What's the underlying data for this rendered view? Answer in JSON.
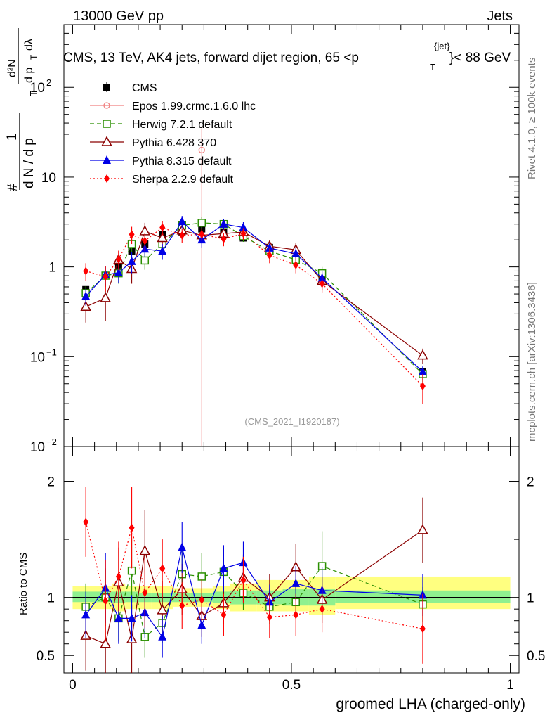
{
  "header": {
    "left": "13000 GeV pp",
    "right": "Jets",
    "side_top": "Rivet 4.1.0, ≥ 100k events",
    "side_bottom": "mcplots.cern.ch [arXiv:1306.3436]"
  },
  "chart_data": {
    "type": "line",
    "title": "CMS, 13 TeV, AK4 jets, forward dijet region, 65 <p",
    "title_sup": "{jet}",
    "title_sub": "T",
    "title_tail": "}< 88 GeV",
    "watermark": "(CMS_2021_I1920187)",
    "xlabel": "groomed LHA (charged-only)",
    "ylabel": "1/dN/dp_T d^2N/dp_T dλ",
    "ylabel_parts": {
      "n1": "1",
      "dn": "d N / d p",
      "t1": "T",
      "hash": "#",
      "d2n": "d²N",
      "dpt": "d p",
      "t2": "T",
      "dl": "dλ"
    },
    "ratio_ylabel": "Ratio to CMS",
    "xlim": [
      -0.02,
      1.02
    ],
    "ylim": [
      0.01,
      500
    ],
    "ratio_ylim": [
      0.35,
      2.3
    ],
    "x_ticks": [
      {
        "v": 0,
        "label": "0"
      },
      {
        "v": 0.5,
        "label": "0.5"
      },
      {
        "v": 1,
        "label": "1"
      }
    ],
    "y_ticks": [
      {
        "v": 0.01,
        "base": "10",
        "exp": "−2"
      },
      {
        "v": 0.1,
        "base": "10",
        "exp": "−1"
      },
      {
        "v": 1,
        "base": "1",
        "exp": ""
      },
      {
        "v": 10,
        "base": "10",
        "exp": ""
      },
      {
        "v": 100,
        "base": "10",
        "exp": "2"
      }
    ],
    "ratio_ticks": [
      {
        "v": 0.5,
        "label": "0.5"
      },
      {
        "v": 1,
        "label": "1"
      },
      {
        "v": 2,
        "label": "2"
      }
    ],
    "x": [
      0.03,
      0.075,
      0.105,
      0.135,
      0.165,
      0.205,
      0.25,
      0.295,
      0.345,
      0.39,
      0.45,
      0.51,
      0.57,
      0.8
    ],
    "series": [
      {
        "name": "CMS",
        "color": "#000000",
        "marker": "square-filled",
        "line": "none",
        "values": [
          0.56,
          0.8,
          1.05,
          1.5,
          1.8,
          2.3,
          2.45,
          2.65,
          2.45,
          2.1,
          1.65,
          1.25,
          0.72,
          0.068
        ],
        "err": [
          0.05,
          0.08,
          0.1,
          0.15,
          0.16,
          0.2,
          0.2,
          0.22,
          0.2,
          0.18,
          0.15,
          0.11,
          0.07,
          0.007
        ]
      },
      {
        "name": "Epos 1.99.crmc.1.6.0 lhc",
        "color": "#f08080",
        "marker": "circle-open",
        "line": "solid",
        "values": [
          null,
          null,
          null,
          null,
          null,
          null,
          null,
          20,
          null,
          null,
          null,
          null,
          null,
          null
        ],
        "err": [
          null,
          null,
          null,
          null,
          null,
          null,
          null,
          15,
          null,
          null,
          null,
          null,
          null,
          null
        ],
        "xerr": [
          null,
          null,
          null,
          null,
          null,
          null,
          null,
          0.02,
          null,
          null,
          null,
          null,
          null,
          null
        ],
        "ratio": [
          null,
          null,
          null,
          null,
          null,
          null,
          null,
          null,
          null,
          null,
          null,
          null,
          null,
          null
        ]
      },
      {
        "name": "Herwig 7.2.1 default",
        "color": "#2a8f00",
        "marker": "square-open",
        "line": "dashed",
        "values": [
          0.51,
          0.8,
          0.85,
          1.8,
          1.18,
          1.8,
          2.9,
          3.1,
          3.0,
          2.2,
          1.5,
          1.2,
          0.85,
          0.064
        ],
        "err": [
          0.1,
          0.2,
          0.2,
          0.45,
          0.25,
          0.35,
          0.5,
          0.5,
          0.4,
          0.3,
          0.25,
          0.2,
          0.15,
          0.012
        ],
        "ratio": [
          0.92,
          1.0,
          0.82,
          1.23,
          0.66,
          0.78,
          1.2,
          1.18,
          1.22,
          1.04,
          0.92,
          0.96,
          1.27,
          0.94
        ],
        "ratio_err": [
          0.2,
          0.25,
          0.2,
          0.28,
          0.18,
          0.17,
          0.2,
          0.2,
          0.2,
          0.15,
          0.15,
          0.15,
          0.3,
          0.15
        ]
      },
      {
        "name": "Pythia 6.428 370",
        "color": "#8b0000",
        "marker": "triangle-open",
        "line": "solid",
        "values": [
          0.36,
          0.45,
          1.2,
          0.95,
          2.5,
          2.1,
          2.55,
          2.25,
          2.35,
          2.45,
          1.7,
          1.55,
          0.7,
          0.103
        ],
        "err": [
          0.12,
          0.2,
          0.3,
          0.3,
          0.6,
          0.5,
          0.5,
          0.4,
          0.4,
          0.4,
          0.3,
          0.3,
          0.15,
          0.02
        ],
        "ratio": [
          0.67,
          0.6,
          1.13,
          0.64,
          1.4,
          0.89,
          1.07,
          0.84,
          0.95,
          1.17,
          1.0,
          1.26,
          0.98,
          1.58
        ],
        "ratio_err": [
          0.3,
          0.35,
          0.3,
          0.3,
          0.35,
          0.25,
          0.22,
          0.18,
          0.18,
          0.2,
          0.2,
          0.2,
          0.2,
          0.28
        ]
      },
      {
        "name": "Pythia 8.315 default",
        "color": "#0000e6",
        "marker": "triangle-filled",
        "line": "solid",
        "values": [
          0.47,
          0.82,
          0.86,
          1.15,
          1.58,
          1.5,
          3.2,
          2.0,
          3.0,
          2.75,
          1.62,
          1.4,
          0.75,
          0.068
        ],
        "err": [
          0.1,
          0.2,
          0.2,
          0.3,
          0.3,
          0.3,
          0.5,
          0.35,
          0.4,
          0.4,
          0.25,
          0.25,
          0.15,
          0.01
        ],
        "ratio": [
          0.85,
          1.08,
          0.82,
          0.82,
          0.87,
          0.66,
          1.43,
          0.76,
          1.25,
          1.3,
          0.96,
          1.12,
          1.06,
          1.02
        ],
        "ratio_err": [
          0.2,
          0.3,
          0.22,
          0.2,
          0.22,
          0.18,
          0.22,
          0.16,
          0.2,
          0.18,
          0.15,
          0.15,
          0.2,
          0.18
        ]
      },
      {
        "name": "Sherpa 2.2.9 default",
        "color": "#ff0000",
        "marker": "diamond-filled",
        "line": "dotted",
        "values": [
          0.9,
          0.78,
          1.22,
          2.3,
          1.95,
          2.75,
          2.25,
          2.3,
          2.05,
          2.35,
          1.35,
          1.05,
          0.65,
          0.047
        ],
        "err": [
          0.2,
          0.25,
          0.3,
          0.5,
          0.45,
          0.5,
          0.4,
          0.35,
          0.35,
          0.35,
          0.25,
          0.2,
          0.13,
          0.017
        ],
        "ratio": [
          1.65,
          0.97,
          1.18,
          1.6,
          1.04,
          1.25,
          0.93,
          0.98,
          0.85,
          1.15,
          0.83,
          0.85,
          0.9,
          0.73
        ],
        "ratio_err": [
          0.3,
          0.35,
          0.3,
          0.35,
          0.3,
          0.25,
          0.2,
          0.18,
          0.18,
          0.2,
          0.18,
          0.18,
          0.2,
          0.3
        ]
      }
    ],
    "uncertainty_bands": {
      "x_edges": [
        0.0,
        0.045,
        0.09,
        0.12,
        0.15,
        0.18,
        0.23,
        0.27,
        0.32,
        0.36,
        0.42,
        0.48,
        0.54,
        0.6,
        1.0
      ],
      "outer": [
        [
          0.9,
          1.1
        ],
        [
          0.9,
          1.1
        ],
        [
          0.88,
          1.12
        ],
        [
          0.9,
          1.1
        ],
        [
          0.9,
          1.1
        ],
        [
          0.9,
          1.1
        ],
        [
          0.92,
          1.08
        ],
        [
          0.92,
          1.08
        ],
        [
          0.9,
          1.1
        ],
        [
          0.88,
          1.12
        ],
        [
          0.88,
          1.15
        ],
        [
          0.88,
          1.15
        ],
        [
          0.85,
          1.18
        ],
        [
          0.9,
          1.18
        ]
      ],
      "inner": [
        [
          0.96,
          1.05
        ],
        [
          0.96,
          1.05
        ],
        [
          0.95,
          1.05
        ],
        [
          0.96,
          1.05
        ],
        [
          0.96,
          1.04
        ],
        [
          0.96,
          1.04
        ],
        [
          0.96,
          1.04
        ],
        [
          0.96,
          1.04
        ],
        [
          0.95,
          1.05
        ],
        [
          0.94,
          1.06
        ],
        [
          0.94,
          1.06
        ],
        [
          0.93,
          1.07
        ],
        [
          0.93,
          1.07
        ],
        [
          0.95,
          1.06
        ]
      ]
    },
    "legend_position": "top-left"
  }
}
